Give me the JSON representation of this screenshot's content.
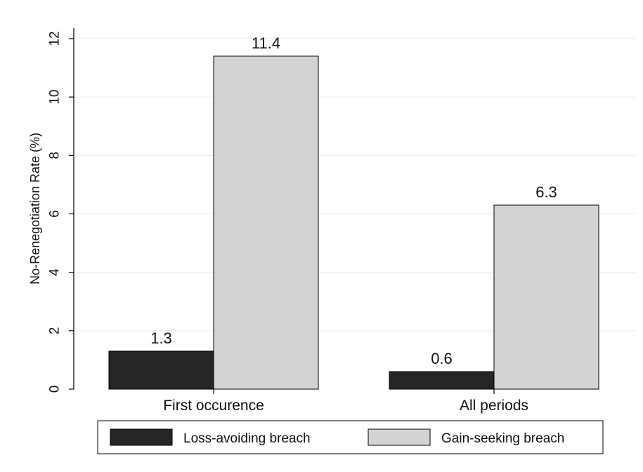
{
  "chart_data": {
    "type": "bar",
    "categories": [
      "First occurence",
      "All periods"
    ],
    "series": [
      {
        "name": "Loss-avoiding breach",
        "values": [
          1.3,
          0.6
        ],
        "color": "#262626"
      },
      {
        "name": "Gain-seeking breach",
        "values": [
          11.4,
          6.3
        ],
        "color": "#d3d3d3"
      }
    ],
    "data_labels": [
      [
        "1.3",
        "0.6"
      ],
      [
        "11.4",
        "6.3"
      ]
    ],
    "title": "",
    "xlabel": "",
    "ylabel": "No-Renegotiation Rate (%)",
    "ylim": [
      0,
      12
    ],
    "yticks": [
      "0",
      "2",
      "4",
      "6",
      "8",
      "10",
      "12"
    ],
    "grid": true,
    "legend_position": "bottom"
  }
}
